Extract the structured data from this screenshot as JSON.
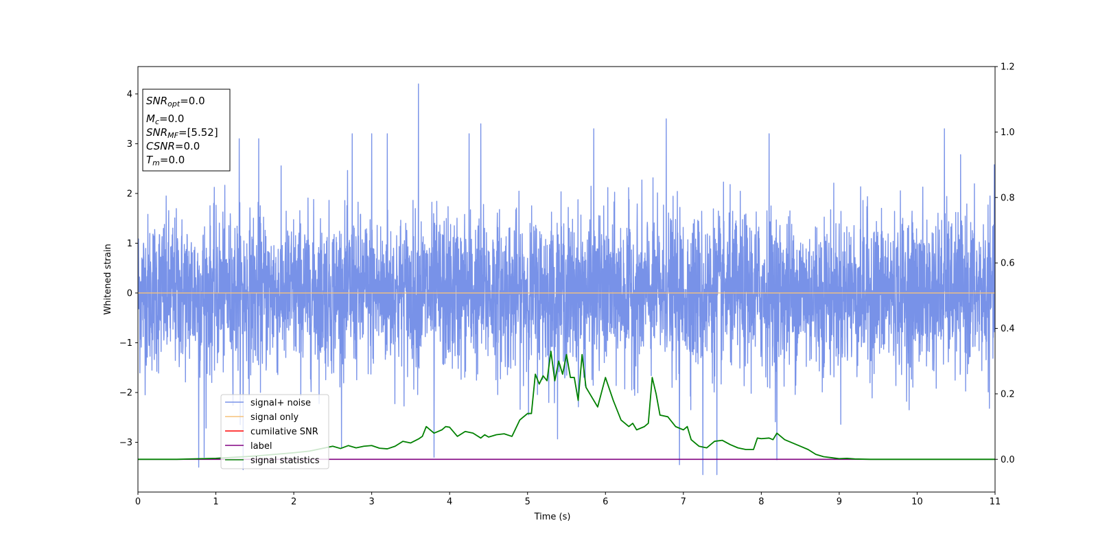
{
  "chart_data": {
    "type": "line",
    "xlabel": "Time (s)",
    "ylabel": "Whitened strain",
    "xlim": [
      0,
      11
    ],
    "ylim": [
      -4.0,
      4.55
    ],
    "ylim_right": [
      -0.1,
      1.2
    ],
    "xticks": [
      0,
      1,
      2,
      3,
      4,
      5,
      6,
      7,
      8,
      9,
      10,
      11
    ],
    "yticks": [
      -3,
      -2,
      -1,
      0,
      1,
      2,
      3,
      4
    ],
    "yticks_right": [
      0.0,
      0.2,
      0.4,
      0.6,
      0.8,
      1.0,
      1.2
    ],
    "grid": false,
    "legend_position": "lower-left",
    "colors": {
      "noise": "#7892e8",
      "signal": "#f5c27a",
      "cumulative": "#ff0000",
      "label": "#800080",
      "statistics": "#008000"
    },
    "series": [
      {
        "name": "signal+ noise",
        "color": "#7892e8",
        "description": "whitened noise, approx. Gaussian with std ~0.75, peaks up to ~4.2 near t=3.6 s"
      },
      {
        "name": "signal only",
        "color": "#f5c27a",
        "x": [
          0,
          11
        ],
        "y": [
          0,
          0
        ]
      },
      {
        "name": "cumilative SNR",
        "color": "#ff0000"
      },
      {
        "name": "label",
        "color": "#800080",
        "axis": "right",
        "x": [
          0,
          11
        ],
        "y": [
          0,
          0
        ]
      },
      {
        "name": "signal statistics",
        "color": "#008000",
        "axis": "right",
        "x": [
          0,
          0.5,
          1.0,
          1.5,
          2.0,
          2.2,
          2.4,
          2.5,
          2.6,
          2.7,
          2.8,
          2.9,
          3.0,
          3.1,
          3.2,
          3.3,
          3.4,
          3.5,
          3.6,
          3.65,
          3.7,
          3.8,
          3.85,
          3.9,
          3.95,
          4.0,
          4.1,
          4.2,
          4.3,
          4.4,
          4.45,
          4.5,
          4.6,
          4.7,
          4.8,
          4.9,
          5.0,
          5.05,
          5.1,
          5.15,
          5.2,
          5.25,
          5.3,
          5.35,
          5.4,
          5.45,
          5.5,
          5.55,
          5.6,
          5.65,
          5.7,
          5.75,
          5.8,
          5.9,
          6.0,
          6.1,
          6.2,
          6.3,
          6.35,
          6.4,
          6.5,
          6.55,
          6.6,
          6.65,
          6.7,
          6.8,
          6.9,
          7.0,
          7.05,
          7.1,
          7.2,
          7.3,
          7.4,
          7.5,
          7.6,
          7.7,
          7.8,
          7.9,
          7.95,
          8.0,
          8.1,
          8.15,
          8.2,
          8.3,
          8.4,
          8.5,
          8.6,
          8.7,
          8.8,
          8.9,
          9.0,
          9.1,
          9.2,
          9.4,
          9.6,
          10.0,
          10.5,
          11.0
        ],
        "y": [
          0.0,
          0.0,
          0.003,
          0.01,
          0.02,
          0.025,
          0.035,
          0.04,
          0.033,
          0.042,
          0.035,
          0.04,
          0.042,
          0.034,
          0.032,
          0.04,
          0.055,
          0.05,
          0.062,
          0.07,
          0.1,
          0.08,
          0.085,
          0.09,
          0.1,
          0.098,
          0.07,
          0.085,
          0.08,
          0.065,
          0.075,
          0.068,
          0.075,
          0.078,
          0.07,
          0.12,
          0.14,
          0.14,
          0.26,
          0.23,
          0.255,
          0.24,
          0.33,
          0.24,
          0.3,
          0.26,
          0.32,
          0.25,
          0.25,
          0.18,
          0.32,
          0.22,
          0.2,
          0.16,
          0.25,
          0.18,
          0.12,
          0.1,
          0.11,
          0.09,
          0.1,
          0.11,
          0.25,
          0.2,
          0.135,
          0.13,
          0.1,
          0.09,
          0.1,
          0.06,
          0.04,
          0.035,
          0.055,
          0.058,
          0.045,
          0.035,
          0.03,
          0.03,
          0.065,
          0.063,
          0.065,
          0.06,
          0.08,
          0.06,
          0.05,
          0.04,
          0.03,
          0.015,
          0.008,
          0.005,
          0.002,
          0.003,
          0.001,
          0.0,
          0.0,
          0.0,
          0.0,
          0.0
        ]
      }
    ],
    "noise_spikes": [
      {
        "x": 3.6,
        "y": 4.2
      },
      {
        "x": 6.78,
        "y": 3.5
      },
      {
        "x": 5.85,
        "y": 3.3
      },
      {
        "x": 10.35,
        "y": 3.3
      },
      {
        "x": 4.4,
        "y": 3.4
      },
      {
        "x": 2.75,
        "y": 3.2
      },
      {
        "x": 3.0,
        "y": 3.2
      },
      {
        "x": 3.2,
        "y": 3.2
      },
      {
        "x": 4.25,
        "y": 3.2
      },
      {
        "x": 1.3,
        "y": 3.1
      },
      {
        "x": 1.55,
        "y": 3.1
      },
      {
        "x": 8.1,
        "y": 3.2
      },
      {
        "x": 0.78,
        "y": -3.5
      },
      {
        "x": 1.35,
        "y": -3.55
      },
      {
        "x": 7.25,
        "y": -3.65
      },
      {
        "x": 7.43,
        "y": -3.65
      },
      {
        "x": 6.95,
        "y": -3.45
      },
      {
        "x": 3.8,
        "y": -3.3
      },
      {
        "x": 8.2,
        "y": -3.35
      },
      {
        "x": 0.85,
        "y": -3.3
      }
    ]
  },
  "info_box": {
    "snr_opt_label": "SNR",
    "snr_opt_sub": "opt",
    "snr_opt_value": "=0.0",
    "mc_label": "M",
    "mc_sub": "c",
    "mc_value": "=0.0",
    "snr_mf_label": "SNR",
    "snr_mf_sub": "MF",
    "snr_mf_value": "=[5.52]",
    "csnr_label": "CSNR",
    "csnr_value": "=0.0",
    "tm_label": "T",
    "tm_sub": "m",
    "tm_value": "=0.0"
  },
  "legend": {
    "items": [
      "signal+ noise",
      "signal only",
      "cumilative SNR",
      "label",
      "signal statistics"
    ]
  }
}
